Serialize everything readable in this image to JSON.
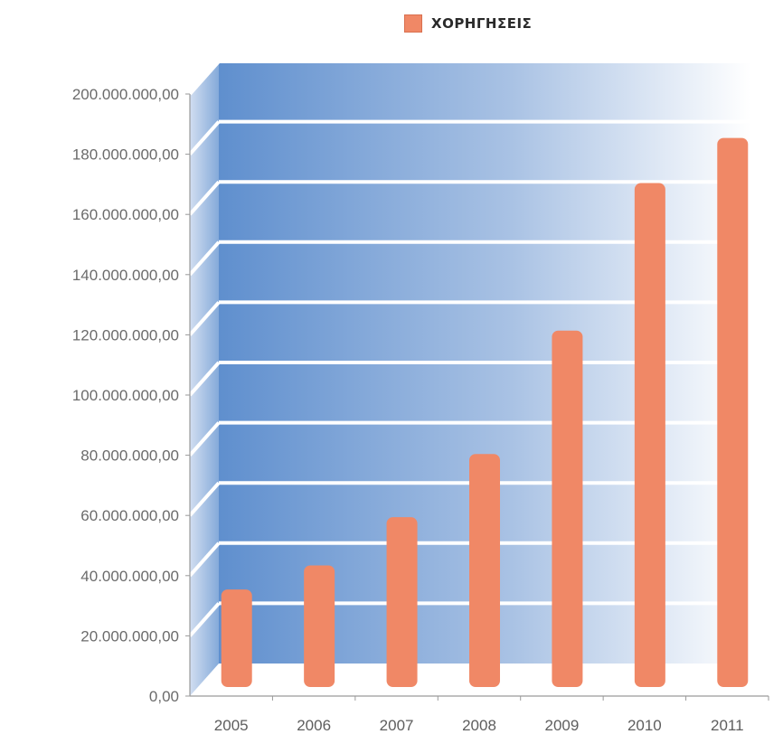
{
  "chart_data": {
    "type": "bar",
    "categories": [
      "2005",
      "2006",
      "2007",
      "2008",
      "2009",
      "2010",
      "2011"
    ],
    "series": [
      {
        "name": "ΧΟΡΗΓΗΣΕΙΣ",
        "values": [
          30000000,
          38000000,
          54000000,
          75000000,
          116000000,
          165000000,
          180000000
        ]
      }
    ],
    "ylim": [
      0,
      200000000
    ],
    "yticks": [
      0,
      20000000,
      40000000,
      60000000,
      80000000,
      100000000,
      120000000,
      140000000,
      160000000,
      180000000,
      200000000
    ],
    "ytick_labels": [
      "0,00",
      "20.000.000,00",
      "40.000.000,00",
      "60.000.000,00",
      "80.000.000,00",
      "100.000.000,00",
      "120.000.000,00",
      "140.000.000,00",
      "160.000.000,00",
      "180.000.000,00",
      "200.000.000,00"
    ],
    "legend_position": "top",
    "grid": true,
    "title": "",
    "xlabel": "",
    "ylabel": "",
    "colors": {
      "bar": "#f08866",
      "wall_start": "#5f8fce",
      "wall_end": "#ffffff",
      "gridline": "#ffffff",
      "axis": "#9a9a9a"
    }
  },
  "legend": {
    "label": "ΧΟΡΗΓΗΣΕΙΣ"
  }
}
